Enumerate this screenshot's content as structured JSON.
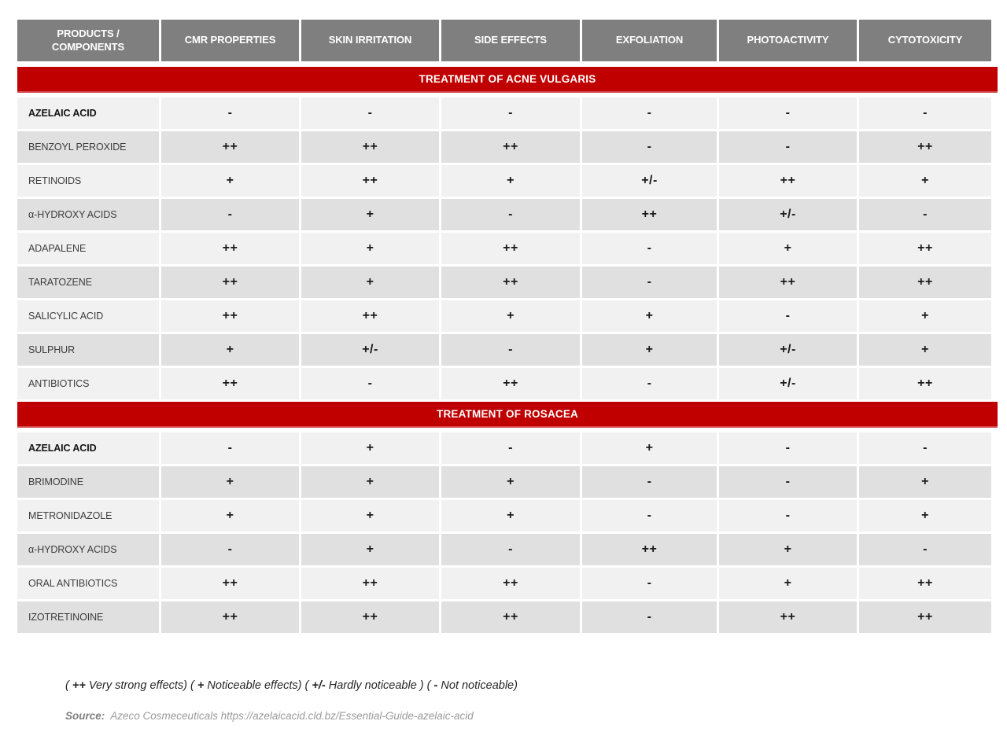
{
  "colors": {
    "accent_red": "#c00000",
    "header_gray": "#7f7f7f",
    "row_light": "#f1f1f1",
    "row_dark": "#e0e0e0"
  },
  "table": {
    "columns": [
      "PRODUCTS / COMPONENTS",
      "CMR PROPERTIES",
      "SKIN IRRITATION",
      "SIDE EFFECTS",
      "EXFOLIATION",
      "PHOTOACTIVITY",
      "CYTOTOXICITY"
    ],
    "sections": [
      {
        "title": "TREATMENT OF ACNE VULGARIS",
        "rows": [
          {
            "product": "AZELAIC ACID",
            "bold": true,
            "values": [
              "-",
              "-",
              "-",
              "-",
              "-",
              "-"
            ]
          },
          {
            "product": "BENZOYL PEROXIDE",
            "bold": false,
            "values": [
              "++",
              "++",
              "++",
              "-",
              "-",
              "++"
            ]
          },
          {
            "product": "RETINOIDS",
            "bold": false,
            "values": [
              "+",
              "++",
              "+",
              "+/-",
              "++",
              "+"
            ]
          },
          {
            "product": "α-HYDROXY ACIDS",
            "bold": false,
            "values": [
              "-",
              "+",
              "-",
              "++",
              "+/-",
              "-"
            ]
          },
          {
            "product": "ADAPALENE",
            "bold": false,
            "values": [
              "++",
              "+",
              "++",
              "-",
              "+",
              "++"
            ]
          },
          {
            "product": "TARATOZENE",
            "bold": false,
            "values": [
              "++",
              "+",
              "++",
              "-",
              "++",
              "++"
            ]
          },
          {
            "product": "SALICYLIC ACID",
            "bold": false,
            "values": [
              "++",
              "++",
              "+",
              "+",
              "-",
              "+"
            ]
          },
          {
            "product": "SULPHUR",
            "bold": false,
            "values": [
              "+",
              "+/-",
              "-",
              "+",
              "+/-",
              "+"
            ]
          },
          {
            "product": "ANTIBIOTICS",
            "bold": false,
            "values": [
              "++",
              "-",
              "++",
              "-",
              "+/-",
              "++"
            ]
          }
        ]
      },
      {
        "title": "TREATMENT OF ROSACEA",
        "rows": [
          {
            "product": "AZELAIC ACID",
            "bold": true,
            "values": [
              "-",
              "+",
              "-",
              "+",
              "-",
              "-"
            ]
          },
          {
            "product": "BRIMODINE",
            "bold": false,
            "values": [
              "+",
              "+",
              "+",
              "-",
              "-",
              "+"
            ]
          },
          {
            "product": "METRONIDAZOLE",
            "bold": false,
            "values": [
              "+",
              "+",
              "+",
              "-",
              "-",
              "+"
            ]
          },
          {
            "product": "α-HYDROXY ACIDS",
            "bold": false,
            "values": [
              "-",
              "+",
              "-",
              "++",
              "+",
              "-"
            ]
          },
          {
            "product": "ORAL ANTIBIOTICS",
            "bold": false,
            "values": [
              "++",
              "++",
              "++",
              "-",
              "+",
              "++"
            ]
          },
          {
            "product": "IZOTRETINOINE",
            "bold": false,
            "values": [
              "++",
              "++",
              "++",
              "-",
              "++",
              "++"
            ]
          }
        ]
      }
    ]
  },
  "footer": {
    "legend": [
      {
        "symbol": "++",
        "label": "Very strong effects"
      },
      {
        "symbol": "+",
        "label": "Noticeable effects"
      },
      {
        "symbol": "+/-",
        "label": "Hardly noticeable "
      },
      {
        "symbol": "-",
        "label": "Not noticeable"
      }
    ],
    "source_label": "Source:",
    "source_text": "Azeco Cosmeceuticals https://azelaicacid.cld.bz/Essential-Guide-azelaic-acid"
  }
}
